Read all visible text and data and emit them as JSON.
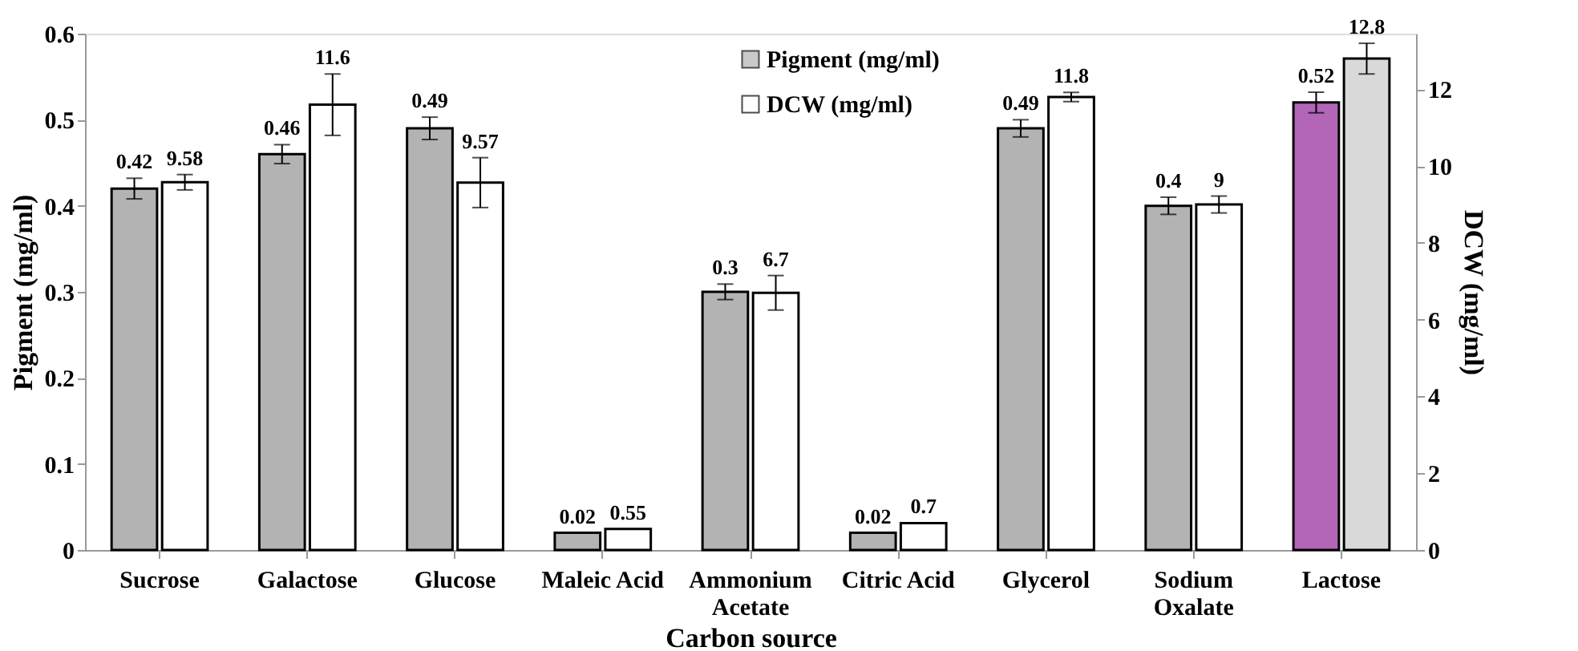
{
  "chart_data": {
    "type": "bar",
    "xlabel": "Carbon source",
    "ylabel": "Pigment (mg/ml)",
    "y2label": "DCW (mg/ml)",
    "categories": [
      "Sucrose",
      "Galactose",
      "Glucose",
      "Maleic Acid",
      "Ammonium Acetate",
      "Citric Acid",
      "Glycerol",
      "Sodium Oxalate",
      "Lactose"
    ],
    "series": [
      {
        "name": "Pigment (mg/ml)",
        "color": "#b3b3b3",
        "colors": [
          "#b3b3b3",
          "#b3b3b3",
          "#b3b3b3",
          "#b3b3b3",
          "#b3b3b3",
          "#b3b3b3",
          "#b3b3b3",
          "#b3b3b3",
          "#b366b8"
        ],
        "values": [
          0.42,
          0.46,
          0.49,
          0.02,
          0.3,
          0.02,
          0.49,
          0.4,
          0.52
        ],
        "errors": [
          0.012,
          0.011,
          0.013,
          null,
          0.009,
          null,
          0.01,
          0.01,
          0.012
        ]
      },
      {
        "name": "DCW (mg/ml)",
        "color": "#ffffff",
        "colors": [
          "#ffffff",
          "#ffffff",
          "#ffffff",
          "#ffffff",
          "#ffffff",
          "#ffffff",
          "#ffffff",
          "#ffffff",
          "#d9d9d9"
        ],
        "axis": "y2",
        "values": [
          9.58,
          11.6,
          9.57,
          0.55,
          6.7,
          0.7,
          11.8,
          9,
          12.8
        ],
        "errors": [
          0.2,
          0.8,
          0.65,
          null,
          0.45,
          null,
          0.12,
          0.22,
          0.4
        ]
      }
    ],
    "ylim": [
      0,
      0.6
    ],
    "yticks": [
      0,
      0.1,
      0.2,
      0.3,
      0.4,
      0.5,
      0.6
    ],
    "y2lim": [
      0,
      13.45
    ],
    "y2ticks": [
      0,
      2,
      4,
      6,
      8,
      10,
      12
    ],
    "data_labels": true,
    "legend": "top",
    "grid": false
  }
}
